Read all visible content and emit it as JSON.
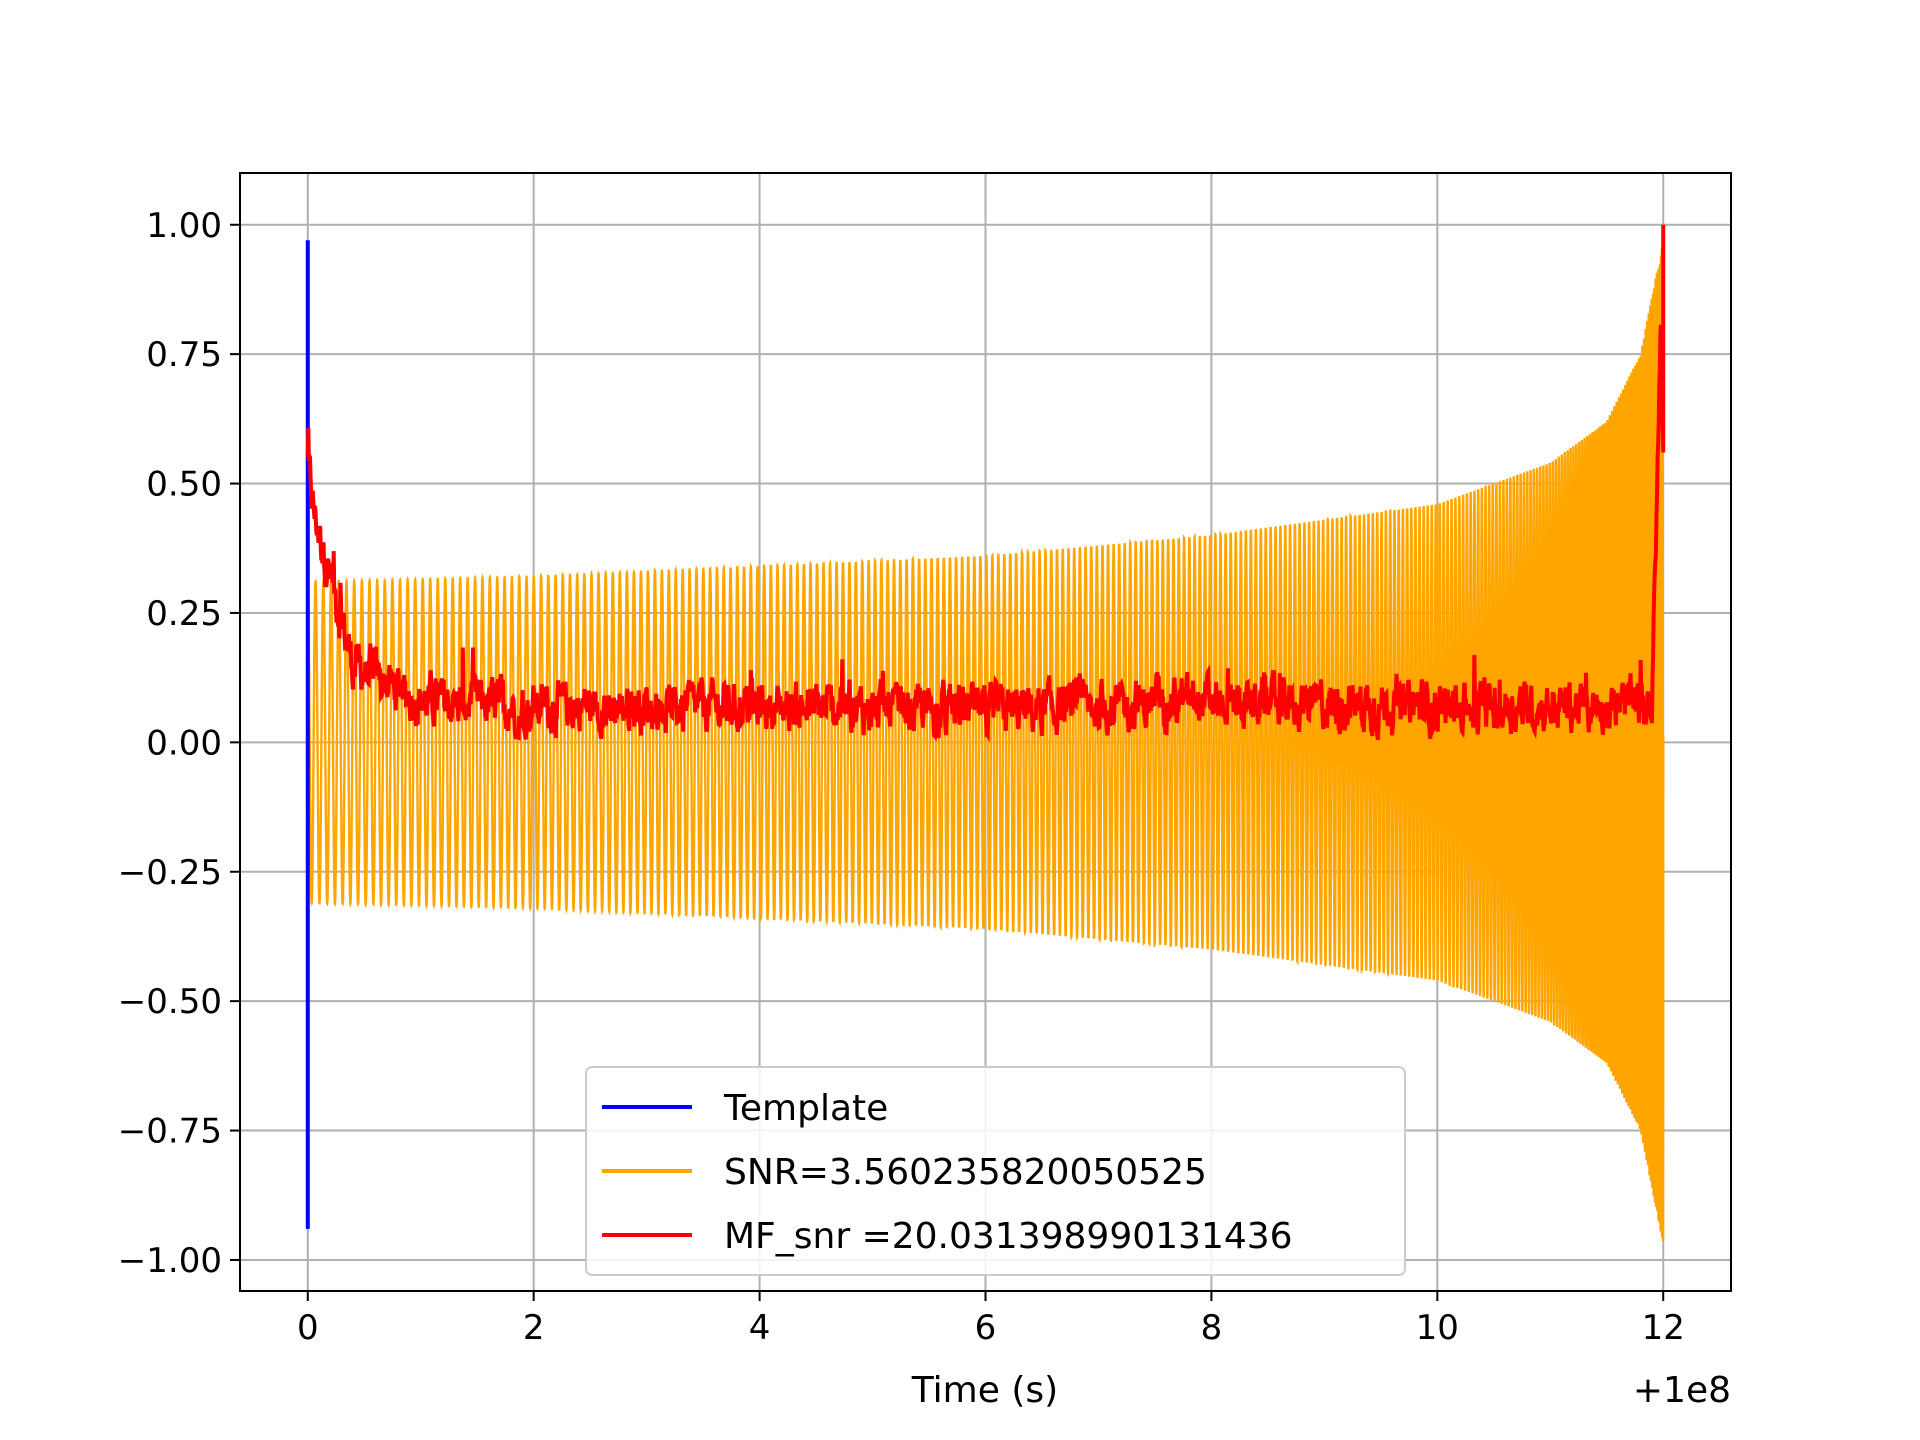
{
  "chart_data": {
    "type": "line",
    "title": "",
    "xlabel": "Time (s)",
    "ylabel": "",
    "x_offset_label": "+1e8",
    "xlim": [
      -0.6,
      12.6
    ],
    "ylim": [
      -1.06,
      1.1
    ],
    "xticks": [
      0,
      2,
      4,
      6,
      8,
      10,
      12
    ],
    "xtick_labels": [
      "0",
      "2",
      "4",
      "6",
      "8",
      "10",
      "12"
    ],
    "yticks": [
      1.0,
      0.75,
      0.5,
      0.25,
      0.0,
      -0.25,
      -0.5,
      -0.75,
      -1.0
    ],
    "ytick_labels": [
      "1.00",
      "0.75",
      "0.50",
      "0.25",
      "0.00",
      "−0.25",
      "−0.50",
      "−0.75",
      "−1.00"
    ],
    "grid": true,
    "legend_position": "lower-center",
    "series": [
      {
        "name": "Template",
        "color": "#0000ff",
        "description_points": [
          [
            0.0,
            0.97
          ],
          [
            0.0,
            -0.94
          ]
        ]
      },
      {
        "name": "SNR=3.560235820050525",
        "color": "#ffa500",
        "envelope": [
          [
            0.0,
            0.31
          ],
          [
            2.0,
            0.32
          ],
          [
            4.0,
            0.34
          ],
          [
            6.0,
            0.36
          ],
          [
            8.0,
            0.4
          ],
          [
            10.0,
            0.46
          ],
          [
            11.0,
            0.54
          ],
          [
            11.5,
            0.62
          ],
          [
            11.8,
            0.75
          ],
          [
            12.0,
            0.97
          ]
        ]
      },
      {
        "name": "MF_snr =20.031398990131436",
        "color": "#ff0000",
        "key_points": [
          [
            0.0,
            0.54
          ],
          [
            0.05,
            0.45
          ],
          [
            0.2,
            0.32
          ],
          [
            0.4,
            0.15
          ],
          [
            1.0,
            0.08
          ],
          [
            2.0,
            0.07
          ],
          [
            4.0,
            0.07
          ],
          [
            6.0,
            0.06
          ],
          [
            8.0,
            0.08
          ],
          [
            10.0,
            0.07
          ],
          [
            11.9,
            0.07
          ],
          [
            12.0,
            1.0
          ]
        ]
      }
    ]
  }
}
